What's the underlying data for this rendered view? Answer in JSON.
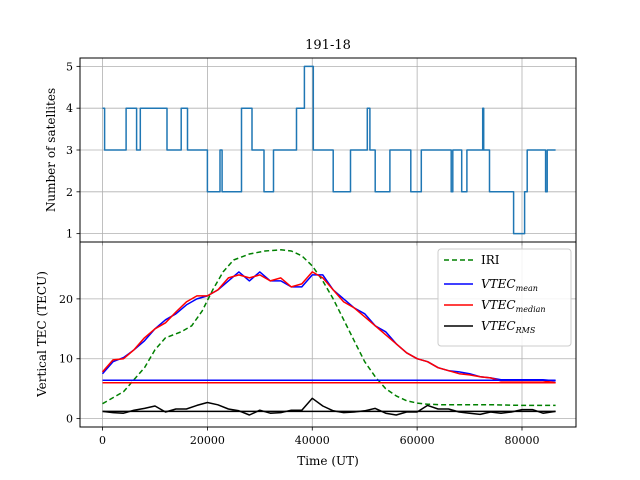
{
  "chart_data": [
    {
      "type": "line",
      "title": "191-18",
      "xlabel": "",
      "ylabel": "Number of satellites",
      "xlim": [
        -4300,
        90300
      ],
      "ylim": [
        0.8,
        5.2
      ],
      "xticks": [
        0,
        20000,
        40000,
        60000,
        80000
      ],
      "yticks": [
        1,
        2,
        3,
        4,
        5
      ],
      "ytick_labels": [
        "1",
        "2",
        "3",
        "4",
        "5"
      ],
      "grid": true,
      "series": [
        {
          "color": "#1f77b4",
          "style": "step",
          "points": [
            [
              0,
              4
            ],
            [
              400,
              4
            ],
            [
              400,
              3
            ],
            [
              4500,
              3
            ],
            [
              4500,
              4
            ],
            [
              6500,
              4
            ],
            [
              6500,
              3
            ],
            [
              7200,
              3
            ],
            [
              7200,
              4
            ],
            [
              12300,
              4
            ],
            [
              12300,
              3
            ],
            [
              15000,
              3
            ],
            [
              15000,
              4
            ],
            [
              16200,
              4
            ],
            [
              16200,
              3
            ],
            [
              20000,
              3
            ],
            [
              20000,
              2
            ],
            [
              22400,
              2
            ],
            [
              22400,
              3
            ],
            [
              22800,
              3
            ],
            [
              22800,
              2
            ],
            [
              26500,
              2
            ],
            [
              26500,
              4
            ],
            [
              28500,
              4
            ],
            [
              28500,
              3
            ],
            [
              30800,
              3
            ],
            [
              30800,
              2
            ],
            [
              32600,
              2
            ],
            [
              32600,
              3
            ],
            [
              37000,
              3
            ],
            [
              37000,
              4
            ],
            [
              38500,
              4
            ],
            [
              38500,
              5
            ],
            [
              40200,
              5
            ],
            [
              40200,
              3
            ],
            [
              44000,
              3
            ],
            [
              44000,
              2
            ],
            [
              47300,
              2
            ],
            [
              47300,
              3
            ],
            [
              50500,
              3
            ],
            [
              50500,
              4
            ],
            [
              51000,
              4
            ],
            [
              51000,
              3
            ],
            [
              52000,
              3
            ],
            [
              52000,
              2
            ],
            [
              54800,
              2
            ],
            [
              54800,
              3
            ],
            [
              58800,
              3
            ],
            [
              58800,
              2
            ],
            [
              60800,
              2
            ],
            [
              60800,
              3
            ],
            [
              66500,
              3
            ],
            [
              66500,
              2
            ],
            [
              66800,
              2
            ],
            [
              66800,
              3
            ],
            [
              68500,
              3
            ],
            [
              68500,
              2
            ],
            [
              69500,
              2
            ],
            [
              69500,
              3
            ],
            [
              72500,
              3
            ],
            [
              72500,
              4
            ],
            [
              72700,
              4
            ],
            [
              72700,
              3
            ],
            [
              73800,
              3
            ],
            [
              73800,
              2
            ],
            [
              78400,
              2
            ],
            [
              78400,
              1
            ],
            [
              80500,
              1
            ],
            [
              80500,
              2
            ],
            [
              81000,
              2
            ],
            [
              81000,
              3
            ],
            [
              84500,
              3
            ],
            [
              84500,
              2
            ],
            [
              84800,
              2
            ],
            [
              84800,
              3
            ],
            [
              86400,
              3
            ]
          ]
        }
      ]
    },
    {
      "type": "line",
      "title": "",
      "xlabel": "Time (UT)",
      "ylabel": "Vertical TEC (TECU)",
      "xlim": [
        -4300,
        90300
      ],
      "ylim": [
        -1.4,
        29.5
      ],
      "xticks": [
        0,
        20000,
        40000,
        60000,
        80000
      ],
      "xtick_labels": [
        "0",
        "20000",
        "40000",
        "60000",
        "80000"
      ],
      "yticks": [
        0,
        10,
        20
      ],
      "ytick_labels": [
        "0",
        "10",
        "20"
      ],
      "grid": true,
      "legend_position": "top-right",
      "legend": [
        "IRI",
        "VTEC_mean",
        "VTEC_median",
        "VTEC_RMS"
      ],
      "series": [
        {
          "name": "IRI",
          "color": "#008000",
          "dash": "dashed",
          "x": [
            0,
            4000,
            8000,
            10000,
            12000,
            15000,
            17000,
            19000,
            21000,
            23000,
            25000,
            28000,
            31000,
            34000,
            36000,
            38000,
            40000,
            42000,
            44000,
            46000,
            48000,
            50000,
            52000,
            54000,
            56000,
            58000,
            60000,
            62000,
            65000,
            70000,
            75000,
            80000,
            86400
          ],
          "y": [
            2.5,
            4.5,
            8.5,
            11.5,
            13.5,
            14.5,
            15.5,
            18,
            21.5,
            24.5,
            26.5,
            27.5,
            28,
            28.2,
            28,
            27.2,
            25.5,
            23,
            20,
            16.5,
            13,
            9.5,
            7,
            5,
            3.8,
            3,
            2.6,
            2.4,
            2.3,
            2.3,
            2.3,
            2.2,
            2.2
          ]
        },
        {
          "name": "VTEC_mean",
          "color": "#0000ff",
          "x": [
            0,
            2000,
            4000,
            6000,
            8000,
            10000,
            12000,
            14000,
            16000,
            18000,
            20000,
            22000,
            24000,
            26000,
            28000,
            30000,
            32000,
            34000,
            36000,
            38000,
            40000,
            42000,
            44000,
            46000,
            48000,
            50000,
            52000,
            54000,
            56000,
            58000,
            60000,
            62000,
            64000,
            66000,
            68000,
            70000,
            72000,
            74000,
            76000,
            78000,
            80000,
            82000,
            84000,
            86400
          ],
          "y": [
            7.5,
            9.5,
            10.2,
            11.5,
            13,
            15,
            16.5,
            17.5,
            19,
            20,
            20.5,
            21.5,
            23,
            24.5,
            23,
            24.5,
            23,
            23,
            22,
            22,
            24,
            24,
            21.5,
            20,
            18.5,
            17.5,
            15.5,
            14.5,
            12.5,
            11,
            10,
            9.5,
            8.5,
            8,
            7.8,
            7.5,
            7,
            6.8,
            6.5,
            6.5,
            6.5,
            6.5,
            6.5,
            6.3
          ]
        },
        {
          "name": "VTEC_median",
          "color": "#ff0000",
          "x": [
            0,
            2000,
            4000,
            6000,
            8000,
            10000,
            12000,
            14000,
            16000,
            18000,
            20000,
            22000,
            24000,
            26000,
            28000,
            30000,
            32000,
            34000,
            36000,
            38000,
            40000,
            42000,
            44000,
            46000,
            48000,
            50000,
            52000,
            54000,
            56000,
            58000,
            60000,
            62000,
            64000,
            66000,
            68000,
            70000,
            72000,
            74000,
            76000,
            78000,
            80000,
            82000,
            84000,
            86400
          ],
          "y": [
            7.8,
            9.8,
            10,
            11.5,
            13.5,
            15,
            16,
            17.8,
            19.5,
            20.5,
            20.5,
            21.5,
            23.5,
            24,
            23.5,
            24,
            23,
            23.5,
            22,
            22.5,
            24.5,
            23.5,
            21.5,
            19.5,
            18.5,
            17,
            15.5,
            14,
            12.5,
            11,
            10,
            9.5,
            8.5,
            8,
            7.5,
            7.3,
            7,
            6.8,
            6.3,
            6.3,
            6.3,
            6.3,
            6.3,
            6
          ]
        },
        {
          "name": "VTEC_RMS",
          "color": "#000000",
          "x": [
            0,
            2000,
            4000,
            6000,
            8000,
            10000,
            12000,
            14000,
            16000,
            18000,
            20000,
            22000,
            24000,
            26000,
            28000,
            30000,
            32000,
            34000,
            36000,
            38000,
            40000,
            42000,
            44000,
            46000,
            48000,
            50000,
            52000,
            54000,
            56000,
            58000,
            60000,
            62000,
            64000,
            66000,
            68000,
            70000,
            72000,
            74000,
            76000,
            78000,
            80000,
            82000,
            84000,
            86400
          ],
          "y": [
            1.2,
            1,
            0.9,
            1.4,
            1.7,
            2.1,
            1.1,
            1.6,
            1.6,
            2.2,
            2.7,
            2.3,
            1.6,
            1.3,
            0.6,
            1.4,
            0.9,
            1.0,
            1.4,
            1.4,
            3.4,
            2.1,
            1.3,
            1.0,
            1.1,
            1.3,
            1.7,
            0.9,
            0.6,
            1.1,
            1.1,
            2.2,
            1.6,
            1.6,
            1.1,
            0.9,
            0.7,
            1.1,
            0.9,
            1.1,
            1.5,
            1.5,
            0.9,
            1.2
          ]
        },
        {
          "color": "#0000ff",
          "x": [
            0,
            86400
          ],
          "y": [
            6.4,
            6.4
          ]
        },
        {
          "color": "#ff0000",
          "x": [
            0,
            86400
          ],
          "y": [
            6.0,
            6.0
          ]
        },
        {
          "color": "#000000",
          "x": [
            0,
            86400
          ],
          "y": [
            1.2,
            1.2
          ]
        }
      ]
    }
  ]
}
